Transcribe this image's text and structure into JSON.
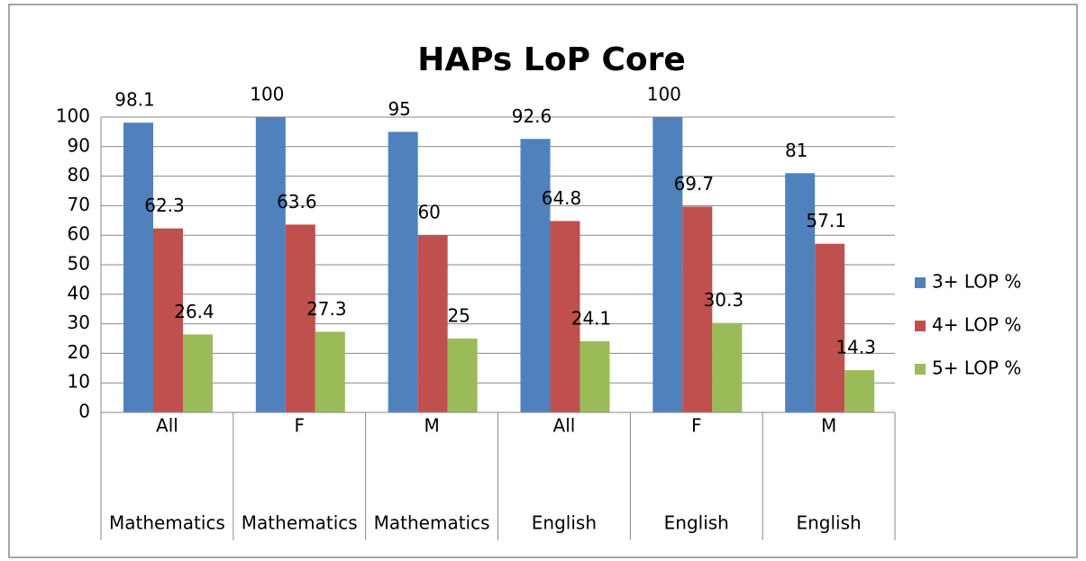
{
  "chart_data": {
    "type": "bar",
    "title": "HAPs LoP Core",
    "categories": [
      "All",
      "F",
      "M",
      "All",
      "F",
      "M"
    ],
    "category_groups": [
      "Mathematics",
      "Mathematics",
      "Mathematics",
      "English",
      "English",
      "English"
    ],
    "series": [
      {
        "name": "3+ LOP %",
        "color": "#4f81bd",
        "values": [
          98.1,
          100,
          95,
          92.6,
          100,
          81
        ]
      },
      {
        "name": "4+ LOP %",
        "color": "#c0504d",
        "values": [
          62.3,
          63.6,
          60,
          64.8,
          69.7,
          57.1
        ]
      },
      {
        "name": "5+ LOP %",
        "color": "#9bbb59",
        "values": [
          26.4,
          27.3,
          25,
          24.1,
          30.3,
          14.3
        ]
      }
    ],
    "ylim": [
      0,
      100
    ],
    "yticks": [
      0,
      10,
      20,
      30,
      40,
      50,
      60,
      70,
      80,
      90,
      100
    ],
    "grid": true,
    "legend": "right"
  }
}
